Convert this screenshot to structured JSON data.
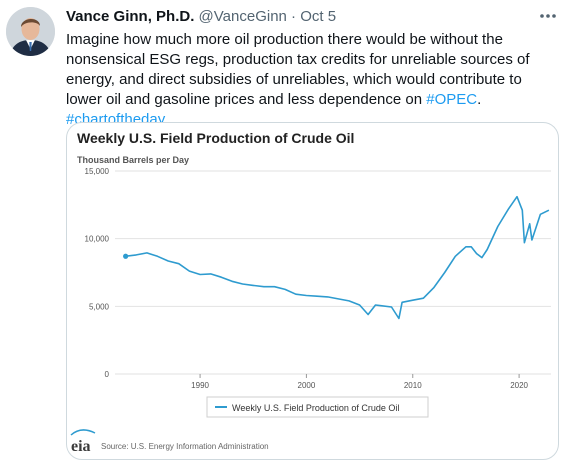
{
  "tweet": {
    "author_name": "Vance Ginn, Ph.D.",
    "handle": "@VanceGinn",
    "separator": " · ",
    "date": "Oct 5",
    "more_icon": "more-horizontal-icon",
    "text_main": "Imagine how much more oil production there would be without the nonsensical ESG regs, production tax credits for unreliable sources of energy, and direct subsidies of unreliables, which would contribute to lower oil and gasoline prices and less dependence on ",
    "hashtag_opec": "#OPEC",
    "text_between": ". ",
    "hashtag_chart": "#chartoftheday"
  },
  "colors": {
    "series_line": "#2e9bcf",
    "hashtag": "#1d9bf0",
    "grid": "#e2e2e2",
    "axis_text": "#555555"
  },
  "chart_data": {
    "type": "line",
    "title": "Weekly U.S. Field Production of Crude Oil",
    "subtitle": "Thousand Barrels per Day",
    "xlabel": "",
    "ylabel": "Thousand Barrels per Day",
    "xlim": [
      1982,
      2023
    ],
    "ylim": [
      0,
      15000
    ],
    "y_ticks": [
      0,
      5000,
      10000,
      15000
    ],
    "y_tick_labels": [
      "0",
      "5,000",
      "10,000",
      "15,000"
    ],
    "x_ticks": [
      1990,
      2000,
      2010,
      2020
    ],
    "x_tick_labels": [
      "1990",
      "2000",
      "2010",
      "2020"
    ],
    "grid": true,
    "legend_position": "bottom",
    "series": [
      {
        "name": "Weekly U.S. Field Production of Crude Oil",
        "x": [
          1983.0,
          1984.0,
          1985.0,
          1986.0,
          1987.0,
          1988.0,
          1989.0,
          1990.0,
          1991.0,
          1992.0,
          1993.0,
          1994.0,
          1995.0,
          1996.0,
          1997.0,
          1998.0,
          1999.0,
          2000.0,
          2001.0,
          2002.0,
          2003.0,
          2004.0,
          2005.0,
          2005.8,
          2006.5,
          2007.0,
          2008.0,
          2008.7,
          2009.0,
          2010.0,
          2011.0,
          2012.0,
          2013.0,
          2014.0,
          2015.0,
          2015.5,
          2016.0,
          2016.5,
          2017.0,
          2018.0,
          2019.0,
          2019.8,
          2020.3,
          2020.5,
          2021.0,
          2021.2,
          2022.0,
          2022.8
        ],
        "values": [
          8700,
          8800,
          8950,
          8700,
          8350,
          8150,
          7600,
          7350,
          7400,
          7150,
          6850,
          6650,
          6550,
          6450,
          6450,
          6250,
          5900,
          5800,
          5750,
          5700,
          5550,
          5400,
          5100,
          4400,
          5100,
          5050,
          4950,
          4100,
          5300,
          5450,
          5600,
          6400,
          7500,
          8700,
          9400,
          9400,
          8900,
          8600,
          9200,
          10900,
          12200,
          13100,
          12100,
          9700,
          11100,
          9900,
          11800,
          12100
        ]
      }
    ],
    "source": "Source: U.S. Energy Information Administration",
    "logo_text": "eia"
  }
}
